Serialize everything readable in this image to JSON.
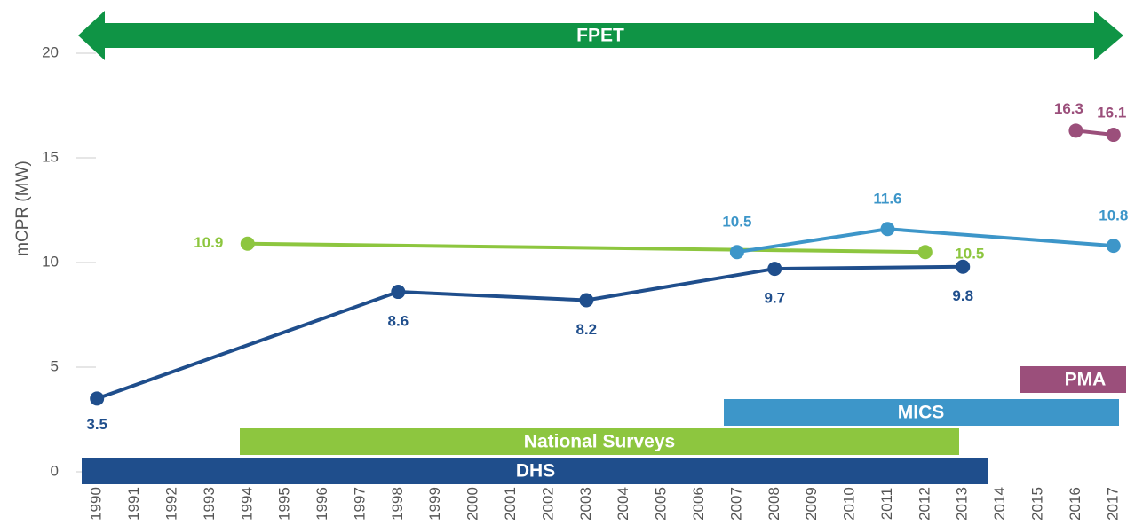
{
  "chart_data": {
    "type": "line",
    "y_label": "mCPR (MW)",
    "xlim": [
      1989.5,
      2017.5
    ],
    "xticks": [
      1990,
      1991,
      1992,
      1993,
      1994,
      1995,
      1996,
      1997,
      1998,
      1999,
      2000,
      2001,
      2002,
      2003,
      2004,
      2005,
      2006,
      2007,
      2008,
      2009,
      2010,
      2011,
      2012,
      2013,
      2014,
      2015,
      2016,
      2017
    ],
    "ylim": [
      0,
      20
    ],
    "yticks": [
      0,
      5,
      10,
      15,
      20
    ],
    "series": [
      {
        "name": "DHS",
        "color": "#1f4e8c",
        "x": [
          1990,
          1998,
          2003,
          2008,
          2013
        ],
        "values": [
          3.5,
          8.6,
          8.2,
          9.7,
          9.8
        ]
      },
      {
        "name": "National Surveys",
        "color": "#8dc63f",
        "x": [
          1994,
          2012
        ],
        "values": [
          10.9,
          10.5
        ]
      },
      {
        "name": "MICS",
        "color": "#3d96c9",
        "x": [
          2007,
          2011,
          2017
        ],
        "values": [
          10.5,
          11.6,
          10.8
        ]
      },
      {
        "name": "PMA",
        "color": "#9b4f7b",
        "x": [
          2016,
          2017
        ],
        "values": [
          16.3,
          16.1
        ]
      }
    ],
    "arrow": {
      "label": "FPET",
      "color": "#0f9445"
    }
  }
}
